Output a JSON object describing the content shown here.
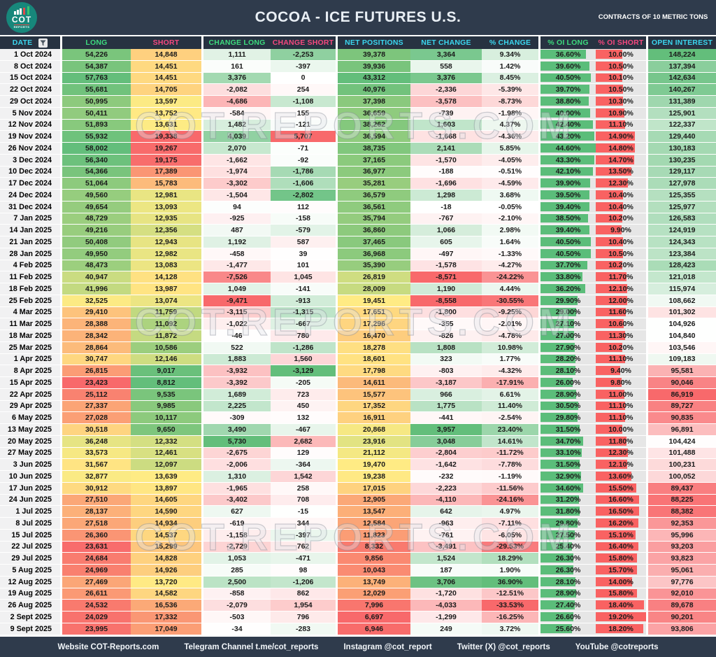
{
  "header": {
    "logo": {
      "line1": "COT",
      "line2": "REPORTS"
    },
    "title": "COCOA - ICE FUTURES U.S.",
    "unit_note": "CONTRACTS OF 10 METRIC TONS"
  },
  "watermark": "COT.REPORTS.COM",
  "table": {
    "columns": [
      {
        "key": "date",
        "label": "DATE",
        "header_color": "cyan",
        "scale": "none"
      },
      {
        "key": "long",
        "label": "LONG",
        "header_color": "green",
        "scale": "ryg"
      },
      {
        "key": "short",
        "label": "SHORT",
        "header_color": "pink",
        "scale": "gyr"
      },
      {
        "key": "change_long",
        "label": "CHANGE LONG",
        "header_color": "green",
        "scale": "diverge"
      },
      {
        "key": "change_short",
        "label": "CHANGE SHORT",
        "header_color": "pink",
        "scale": "diverge_inv"
      },
      {
        "key": "net_positions",
        "label": "NET POSITIONS",
        "header_color": "cyan",
        "scale": "ryg"
      },
      {
        "key": "net_change",
        "label": "NET CHANGE",
        "header_color": "cyan",
        "scale": "diverge"
      },
      {
        "key": "pct_change",
        "label": "% CHANGE",
        "header_color": "cyan",
        "scale": "diverge"
      },
      {
        "key": "oi_long",
        "label": "% OI LONG",
        "header_color": "green",
        "scale": "bar_green"
      },
      {
        "key": "oi_short",
        "label": "% OI SHORT",
        "header_color": "pink",
        "scale": "bar_red"
      },
      {
        "key": "open_interest",
        "label": "OPEN INTEREST",
        "header_color": "cyan",
        "scale": "rwg"
      }
    ],
    "gap_after_columns": [
      0,
      2,
      4,
      7,
      9
    ],
    "rows": [
      [
        "1 Oct 2024",
        "54,226",
        "14,848",
        "1,111",
        "-2,253",
        "39,378",
        "3,364",
        "9.34%",
        "36.60%",
        "10.00%",
        "148,224"
      ],
      [
        "8 Oct 2024",
        "54,387",
        "14,451",
        "161",
        "-397",
        "39,936",
        "558",
        "1.42%",
        "39.60%",
        "10.50%",
        "137,394"
      ],
      [
        "15 Oct 2024",
        "57,763",
        "14,451",
        "3,376",
        "0",
        "43,312",
        "3,376",
        "8.45%",
        "40.50%",
        "10.10%",
        "142,634"
      ],
      [
        "22 Oct 2024",
        "55,681",
        "14,705",
        "-2,082",
        "254",
        "40,976",
        "-2,336",
        "-5.39%",
        "39.70%",
        "10.50%",
        "140,267"
      ],
      [
        "29 Oct 2024",
        "50,995",
        "13,597",
        "-4,686",
        "-1,108",
        "37,398",
        "-3,578",
        "-8.73%",
        "38.80%",
        "10.30%",
        "131,389"
      ],
      [
        "5 Nov 2024",
        "50,411",
        "13,752",
        "-584",
        "155",
        "36,659",
        "-739",
        "-1.98%",
        "40.00%",
        "10.90%",
        "125,901"
      ],
      [
        "12 Nov 2024",
        "51,893",
        "13,631",
        "1,482",
        "-121",
        "38,262",
        "1,603",
        "4.37%",
        "42.40%",
        "11.10%",
        "122,337"
      ],
      [
        "19 Nov 2024",
        "55,932",
        "19,338",
        "4,039",
        "5,707",
        "36,594",
        "-1,668",
        "-4.36%",
        "43.20%",
        "14.90%",
        "129,440"
      ],
      [
        "26 Nov 2024",
        "58,002",
        "19,267",
        "2,070",
        "-71",
        "38,735",
        "2,141",
        "5.85%",
        "44.60%",
        "14.80%",
        "130,183"
      ],
      [
        "3 Dec 2024",
        "56,340",
        "19,175",
        "-1,662",
        "-92",
        "37,165",
        "-1,570",
        "-4.05%",
        "43.30%",
        "14.70%",
        "130,235"
      ],
      [
        "10 Dec 2024",
        "54,366",
        "17,389",
        "-1,974",
        "-1,786",
        "36,977",
        "-188",
        "-0.51%",
        "42.10%",
        "13.50%",
        "129,117"
      ],
      [
        "17 Dec 2024",
        "51,064",
        "15,783",
        "-3,302",
        "-1,606",
        "35,281",
        "-1,696",
        "-4.59%",
        "39.90%",
        "12.30%",
        "127,978"
      ],
      [
        "24 Dec 2024",
        "49,560",
        "12,981",
        "-1,504",
        "-2,802",
        "36,579",
        "1,298",
        "3.68%",
        "39.50%",
        "10.40%",
        "125,355"
      ],
      [
        "31 Dec 2024",
        "49,654",
        "13,093",
        "94",
        "112",
        "36,561",
        "-18",
        "-0.05%",
        "39.40%",
        "10.40%",
        "125,977"
      ],
      [
        "7 Jan 2025",
        "48,729",
        "12,935",
        "-925",
        "-158",
        "35,794",
        "-767",
        "-2.10%",
        "38.50%",
        "10.20%",
        "126,583"
      ],
      [
        "14 Jan 2025",
        "49,216",
        "12,356",
        "487",
        "-579",
        "36,860",
        "1,066",
        "2.98%",
        "39.40%",
        "9.90%",
        "124,919"
      ],
      [
        "21 Jan 2025",
        "50,408",
        "12,943",
        "1,192",
        "587",
        "37,465",
        "605",
        "1.64%",
        "40.50%",
        "10.40%",
        "124,343"
      ],
      [
        "28 Jan 2025",
        "49,950",
        "12,982",
        "-458",
        "39",
        "36,968",
        "-497",
        "-1.33%",
        "40.50%",
        "10.50%",
        "123,384"
      ],
      [
        "4 Feb 2025",
        "48,473",
        "13,083",
        "-1,477",
        "101",
        "35,390",
        "-1,578",
        "-4.27%",
        "37.70%",
        "10.20%",
        "128,423"
      ],
      [
        "11 Feb 2025",
        "40,947",
        "14,128",
        "-7,526",
        "1,045",
        "26,819",
        "-8,571",
        "-24.22%",
        "33.80%",
        "11.70%",
        "121,018"
      ],
      [
        "18 Feb 2025",
        "41,996",
        "13,987",
        "1,049",
        "-141",
        "28,009",
        "1,190",
        "4.44%",
        "36.20%",
        "12.10%",
        "115,974"
      ],
      [
        "25 Feb 2025",
        "32,525",
        "13,074",
        "-9,471",
        "-913",
        "19,451",
        "-8,558",
        "-30.55%",
        "29.90%",
        "12.00%",
        "108,662"
      ],
      [
        "4 Mar 2025",
        "29,410",
        "11,759",
        "-3,115",
        "-1,315",
        "17,651",
        "-1,800",
        "-9.25%",
        "29.00%",
        "11.60%",
        "101,302"
      ],
      [
        "11 Mar 2025",
        "28,388",
        "11,092",
        "-1,022",
        "-667",
        "17,296",
        "-355",
        "-2.01%",
        "27.10%",
        "10.60%",
        "104,926"
      ],
      [
        "18 Mar 2025",
        "28,342",
        "11,872",
        "-46",
        "780",
        "16,470",
        "-826",
        "-4.78%",
        "27.00%",
        "11.30%",
        "104,840"
      ],
      [
        "25 Mar 2025",
        "28,864",
        "10,586",
        "522",
        "-1,286",
        "18,278",
        "1,808",
        "10.98%",
        "27.90%",
        "10.20%",
        "103,546"
      ],
      [
        "1 Apr 2025",
        "30,747",
        "12,146",
        "1,883",
        "1,560",
        "18,601",
        "323",
        "1.77%",
        "28.20%",
        "11.10%",
        "109,183"
      ],
      [
        "8 Apr 2025",
        "26,815",
        "9,017",
        "-3,932",
        "-3,129",
        "17,798",
        "-803",
        "-4.32%",
        "28.10%",
        "9.40%",
        "95,581"
      ],
      [
        "15 Apr 2025",
        "23,423",
        "8,812",
        "-3,392",
        "-205",
        "14,611",
        "-3,187",
        "-17.91%",
        "26.00%",
        "9.80%",
        "90,046"
      ],
      [
        "22 Apr 2025",
        "25,112",
        "9,535",
        "1,689",
        "723",
        "15,577",
        "966",
        "6.61%",
        "28.90%",
        "11.00%",
        "86,919"
      ],
      [
        "29 Apr 2025",
        "27,337",
        "9,985",
        "2,225",
        "450",
        "17,352",
        "1,775",
        "11.40%",
        "30.50%",
        "11.10%",
        "89,727"
      ],
      [
        "6 May 2025",
        "27,028",
        "10,117",
        "-309",
        "132",
        "16,911",
        "-441",
        "-2.54%",
        "29.80%",
        "11.10%",
        "90,835"
      ],
      [
        "13 May 2025",
        "30,518",
        "9,650",
        "3,490",
        "-467",
        "20,868",
        "3,957",
        "23.40%",
        "31.50%",
        "10.00%",
        "96,891"
      ],
      [
        "20 May 2025",
        "36,248",
        "12,332",
        "5,730",
        "2,682",
        "23,916",
        "3,048",
        "14.61%",
        "34.70%",
        "11.80%",
        "104,424"
      ],
      [
        "27 May 2025",
        "33,573",
        "12,461",
        "-2,675",
        "129",
        "21,112",
        "-2,804",
        "-11.72%",
        "33.10%",
        "12.30%",
        "101,488"
      ],
      [
        "3 Jun 2025",
        "31,567",
        "12,097",
        "-2,006",
        "-364",
        "19,470",
        "-1,642",
        "-7.78%",
        "31.50%",
        "12.10%",
        "100,231"
      ],
      [
        "10 Jun 2025",
        "32,877",
        "13,639",
        "1,310",
        "1,542",
        "19,238",
        "-232",
        "-1.19%",
        "32.90%",
        "13.60%",
        "100,052"
      ],
      [
        "17 Jun 2025",
        "30,912",
        "13,897",
        "-1,965",
        "258",
        "17,015",
        "-2,223",
        "-11.56%",
        "34.60%",
        "15.50%",
        "89,437"
      ],
      [
        "24 Jun 2025",
        "27,510",
        "14,605",
        "-3,402",
        "708",
        "12,905",
        "-4,110",
        "-24.16%",
        "31.20%",
        "16.60%",
        "88,225"
      ],
      [
        "1 Jul 2025",
        "28,137",
        "14,590",
        "627",
        "-15",
        "13,547",
        "642",
        "4.97%",
        "31.80%",
        "16.50%",
        "88,382"
      ],
      [
        "8 Jul 2025",
        "27,518",
        "14,934",
        "-619",
        "344",
        "12,584",
        "-963",
        "-7.11%",
        "29.80%",
        "16.20%",
        "92,353"
      ],
      [
        "15 Jul 2025",
        "26,360",
        "14,537",
        "-1,158",
        "-397",
        "11,823",
        "-761",
        "-6.05%",
        "27.50%",
        "15.10%",
        "95,996"
      ],
      [
        "22 Jul 2025",
        "23,631",
        "15,299",
        "-2,729",
        "762",
        "8,332",
        "-3,491",
        "-29.53%",
        "25.40%",
        "16.40%",
        "93,203"
      ],
      [
        "29 Jul 2025",
        "24,684",
        "14,828",
        "1,053",
        "-471",
        "9,856",
        "1,524",
        "18.29%",
        "26.30%",
        "15.80%",
        "93,823"
      ],
      [
        "5 Aug 2025",
        "24,969",
        "14,926",
        "285",
        "98",
        "10,043",
        "187",
        "1.90%",
        "26.30%",
        "15.70%",
        "95,061"
      ],
      [
        "12 Aug 2025",
        "27,469",
        "13,720",
        "2,500",
        "-1,206",
        "13,749",
        "3,706",
        "36.90%",
        "28.10%",
        "14.00%",
        "97,776"
      ],
      [
        "19 Aug 2025",
        "26,611",
        "14,582",
        "-858",
        "862",
        "12,029",
        "-1,720",
        "-12.51%",
        "28.90%",
        "15.80%",
        "92,010"
      ],
      [
        "26 Aug 2025",
        "24,532",
        "16,536",
        "-2,079",
        "1,954",
        "7,996",
        "-4,033",
        "-33.53%",
        "27.40%",
        "18.40%",
        "89,678"
      ],
      [
        "2 Sept 2025",
        "24,029",
        "17,332",
        "-503",
        "796",
        "6,697",
        "-1,299",
        "-16.25%",
        "26.60%",
        "19.20%",
        "90,201"
      ],
      [
        "9 Sept 2025",
        "23,995",
        "17,049",
        "-34",
        "-283",
        "6,946",
        "249",
        "3.72%",
        "25.60%",
        "18.20%",
        "93,806"
      ]
    ]
  },
  "footer": {
    "items": [
      "Website COT-Reports.com",
      "Telegram Channel t.me/cot_reports",
      "Instagram @cot_report",
      "Twitter (X) @cot_reports",
      "YouTube @cotreports"
    ]
  },
  "colors": {
    "banner_bg": "#2F3B4C",
    "colheader_bg": "#273241",
    "footer_bg": "#2F3B4C",
    "header_cyan": "#3BD6EF",
    "header_green": "#3DDB7E",
    "header_pink": "#F5487F",
    "scale_red": "#F8696B",
    "scale_yellow": "#FFEB84",
    "scale_green": "#63BE7B",
    "scale_white": "#FFFFFF",
    "bar_green": "#5BBD7A",
    "bar_red": "#F96262",
    "bar_track": "#E6E6E6",
    "logo_teal": "#17877B",
    "date_cell_bg": "#F1F1F2"
  }
}
